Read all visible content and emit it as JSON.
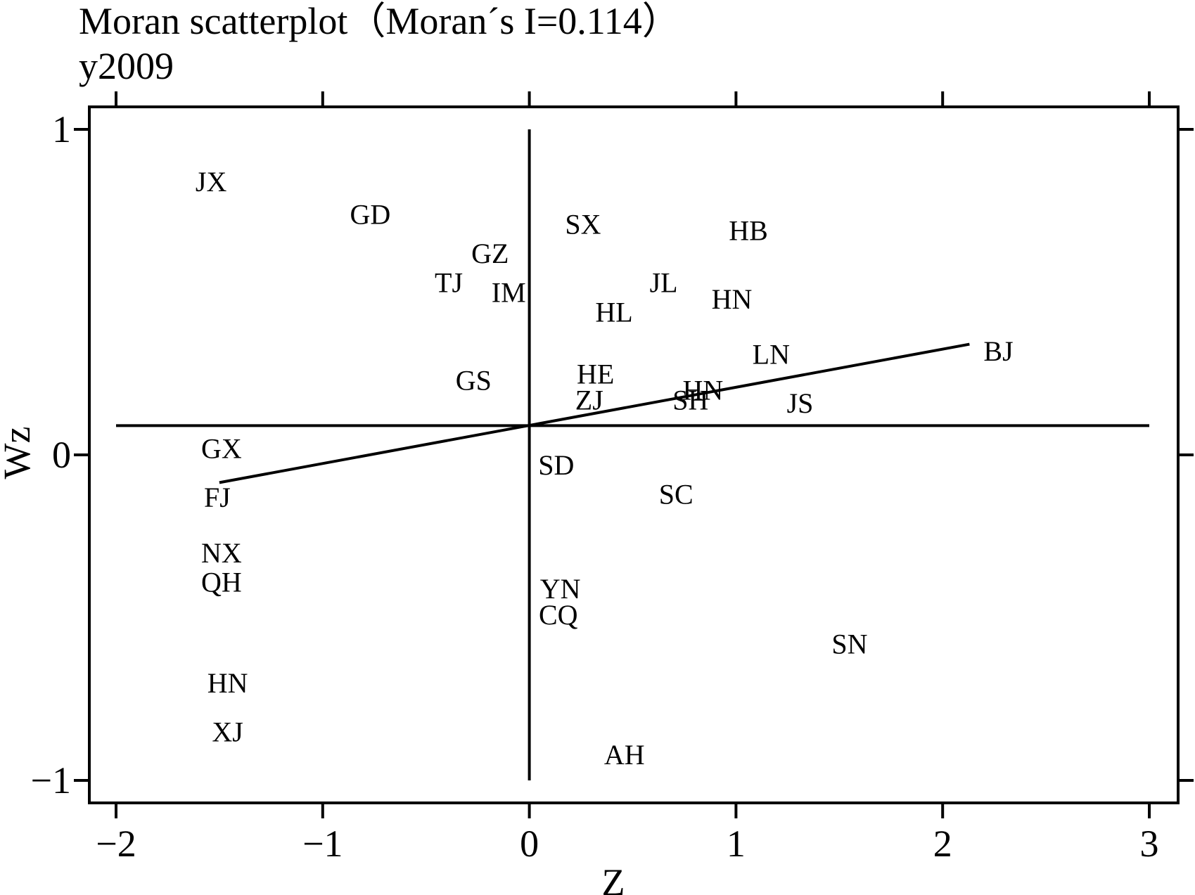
{
  "chart_data": {
    "type": "scatter",
    "title": "Moran scatterplot（Moran´s I=0.114）",
    "subtitle": "y2009",
    "xlabel": "Z",
    "ylabel": "Wz",
    "xlim": [
      -2.12,
      3.14
    ],
    "ylim": [
      -1.07,
      1.07
    ],
    "xticks": [
      -2,
      -1,
      0,
      1,
      2,
      3
    ],
    "xtick_labels": [
      "−2",
      "−1",
      "0",
      "1",
      "2",
      "3"
    ],
    "yticks": [
      -1,
      0,
      1
    ],
    "ytick_labels": [
      "−1",
      "0",
      "1"
    ],
    "mean_x": 0,
    "mean_y": 0.09,
    "fit_line": {
      "x": [
        -1.5,
        2.13
      ],
      "y": [
        -0.085,
        0.34
      ]
    },
    "points": [
      {
        "label": "JX",
        "x": -1.54,
        "y": 0.84
      },
      {
        "label": "GD",
        "x": -0.77,
        "y": 0.74
      },
      {
        "label": "SX",
        "x": 0.26,
        "y": 0.71
      },
      {
        "label": "HB",
        "x": 1.06,
        "y": 0.69
      },
      {
        "label": "GZ",
        "x": -0.19,
        "y": 0.62
      },
      {
        "label": "TJ",
        "x": -0.39,
        "y": 0.53
      },
      {
        "label": "IM",
        "x": -0.1,
        "y": 0.5
      },
      {
        "label": "JL",
        "x": 0.65,
        "y": 0.53
      },
      {
        "label": "HN",
        "x": 0.98,
        "y": 0.48
      },
      {
        "label": "HL",
        "x": 0.41,
        "y": 0.44
      },
      {
        "label": "BJ",
        "x": 2.27,
        "y": 0.32
      },
      {
        "label": "LN",
        "x": 1.17,
        "y": 0.31
      },
      {
        "label": "GS",
        "x": -0.27,
        "y": 0.23
      },
      {
        "label": "HE",
        "x": 0.32,
        "y": 0.25
      },
      {
        "label": "HN",
        "x": 0.84,
        "y": 0.2
      },
      {
        "label": "SH",
        "x": 0.78,
        "y": 0.17
      },
      {
        "label": "ZJ",
        "x": 0.29,
        "y": 0.17
      },
      {
        "label": "JS",
        "x": 1.31,
        "y": 0.16
      },
      {
        "label": "GX",
        "x": -1.49,
        "y": 0.02
      },
      {
        "label": "SD",
        "x": 0.13,
        "y": -0.03
      },
      {
        "label": "FJ",
        "x": -1.51,
        "y": -0.13
      },
      {
        "label": "SC",
        "x": 0.71,
        "y": -0.12
      },
      {
        "label": "NX",
        "x": -1.49,
        "y": -0.3
      },
      {
        "label": "QH",
        "x": -1.49,
        "y": -0.39
      },
      {
        "label": "YN",
        "x": 0.15,
        "y": -0.41
      },
      {
        "label": "CQ",
        "x": 0.14,
        "y": -0.49
      },
      {
        "label": "SN",
        "x": 1.55,
        "y": -0.58
      },
      {
        "label": "HN",
        "x": -1.46,
        "y": -0.7
      },
      {
        "label": "XJ",
        "x": -1.46,
        "y": -0.85
      },
      {
        "label": "AH",
        "x": 0.46,
        "y": -0.92
      }
    ]
  }
}
